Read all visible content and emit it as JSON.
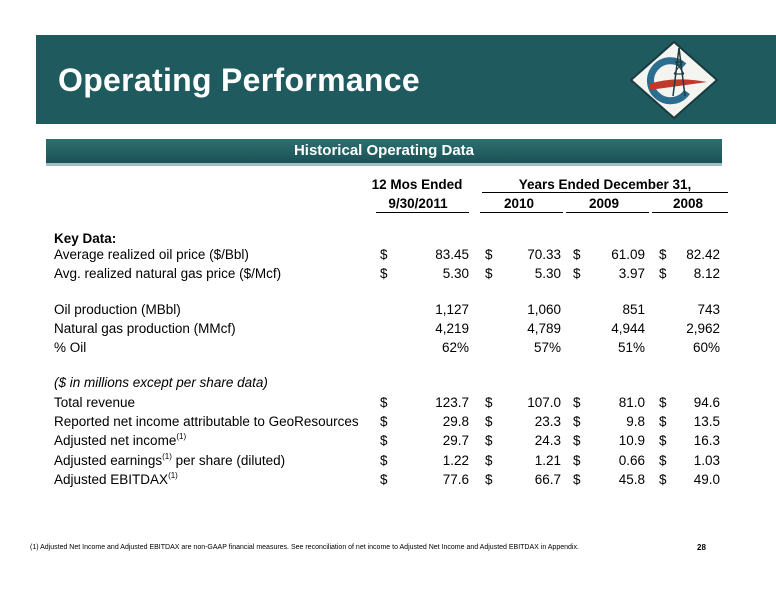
{
  "header": {
    "title": "Operating Performance"
  },
  "section": {
    "title": "Historical Operating Data"
  },
  "table": {
    "header_group_1": "12 Mos Ended",
    "header_group_2": "Years Ended December 31,",
    "columns": [
      "9/30/2011",
      "2010",
      "2009",
      "2008"
    ],
    "key_data_label": "Key Data:",
    "prices": [
      {
        "label": "Average realized oil price  ($/Bbl)",
        "values": [
          "83.45",
          "70.33",
          "61.09",
          "82.42"
        ]
      },
      {
        "label": "Avg. realized natural gas price ($/Mcf)",
        "values": [
          "5.30",
          "5.30",
          "3.97",
          "8.12"
        ]
      }
    ],
    "production": [
      {
        "label": "Oil production (MBbl)",
        "values": [
          "1,127",
          "1,060",
          "851",
          "743"
        ]
      },
      {
        "label": "Natural gas production (MMcf)",
        "values": [
          "4,219",
          "4,789",
          "4,944",
          "2,962"
        ]
      },
      {
        "label": "% Oil",
        "values": [
          "62%",
          "57%",
          "51%",
          "60%"
        ]
      }
    ],
    "financial_note": "($ in millions except per share data)",
    "financials": [
      {
        "label": "Total revenue",
        "values": [
          "123.7",
          "107.0",
          "81.0",
          "94.6"
        ]
      },
      {
        "label": "Reported net income attributable to GeoResources",
        "values": [
          "29.8",
          "23.3",
          "9.8",
          "13.5"
        ]
      },
      {
        "label": "Adjusted net income",
        "sup": "(1)",
        "values": [
          "29.7",
          "24.3",
          "10.9",
          "16.3"
        ]
      },
      {
        "label": "Adjusted earnings",
        "sup": "(1)",
        "label_suffix": " per share (diluted)",
        "values": [
          "1.22",
          "1.21",
          "0.66",
          "1.03"
        ]
      },
      {
        "label": "Adjusted EBITDAX",
        "sup": "(1)",
        "values": [
          "77.6",
          "66.7",
          "45.8",
          "49.0"
        ]
      }
    ],
    "currency_symbol": "$"
  },
  "footnote": "(1)    Adjusted  Net Income and Adjusted EBITDAX are non-GAAP financial measures.  See  reconciliation of net income to Adjusted Net Income and Adjusted EBITDAX in Appendix.",
  "page_number": "28",
  "colors": {
    "banner": "#1e5a5e",
    "accent_red": "#c0392b",
    "logo_blue": "#2c6e8f"
  }
}
